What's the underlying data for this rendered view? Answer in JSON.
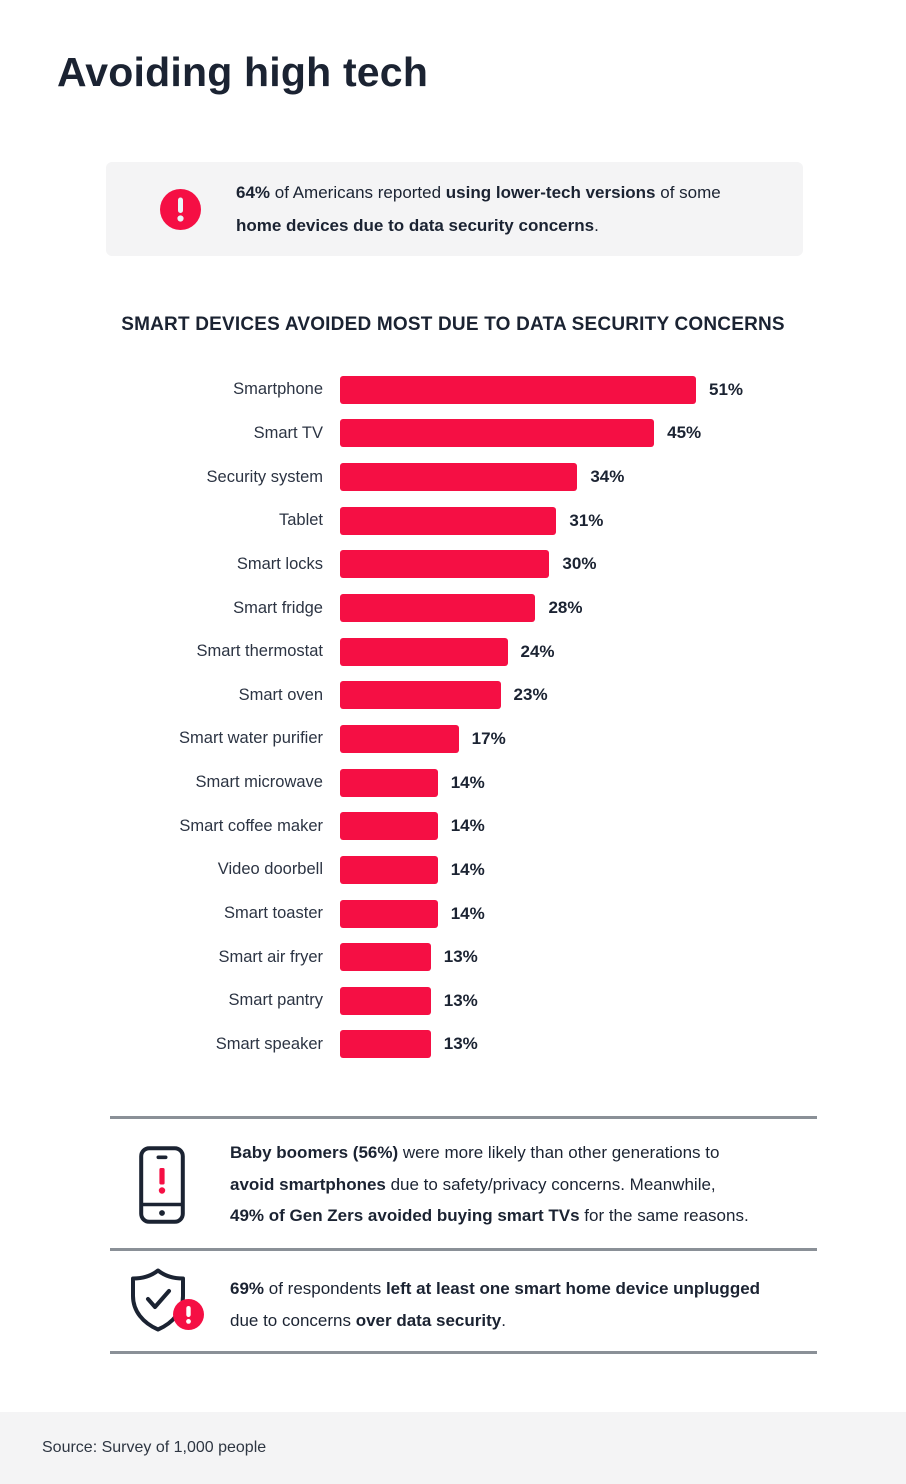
{
  "colors": {
    "accent": "#F50F44",
    "navy": "#1B2332",
    "panel": "#F4F4F5",
    "divider": "#8A9097"
  },
  "header": {
    "title": "Avoiding high tech"
  },
  "top_callout": {
    "icon": "alert-circle-icon",
    "lines": [
      [
        {
          "t": "64%",
          "b": true
        },
        {
          "t": " of Americans reported ",
          "b": false
        },
        {
          "t": "using lower-tech versions",
          "b": true
        },
        {
          "t": " of some",
          "b": false
        }
      ],
      [
        {
          "t": "home devices due to data security concerns",
          "b": true
        },
        {
          "t": ".",
          "b": false
        }
      ]
    ]
  },
  "chart_data": {
    "type": "bar",
    "orientation": "horizontal",
    "title": "SMART DEVICES AVOIDED MOST DUE TO DATA SECURITY CONCERNS",
    "categories": [
      "Smartphone",
      "Smart TV",
      "Security system",
      "Tablet",
      "Smart locks",
      "Smart fridge",
      "Smart thermostat",
      "Smart oven",
      "Smart water purifier",
      "Smart microwave",
      "Smart coffee maker",
      "Video doorbell",
      "Smart toaster",
      "Smart air fryer",
      "Smart pantry",
      "Smart speaker"
    ],
    "values": [
      51,
      45,
      34,
      31,
      30,
      28,
      24,
      23,
      17,
      14,
      14,
      14,
      14,
      13,
      13,
      13
    ],
    "value_suffix": "%",
    "bar_color": "#F50F44",
    "xlim": [
      0,
      51
    ],
    "grid": false,
    "data_labels": true,
    "legend": "none"
  },
  "insights": [
    {
      "icon": "smartphone-alert-icon",
      "lines": [
        [
          {
            "t": "Baby boomers (56%)",
            "b": true
          },
          {
            "t": " were more likely than other generations to",
            "b": false
          }
        ],
        [
          {
            "t": "avoid smartphones",
            "b": true
          },
          {
            "t": " due to safety/privacy concerns. Meanwhile,",
            "b": false
          }
        ],
        [
          {
            "t": "49% of Gen Zers avoided buying smart TVs",
            "b": true
          },
          {
            "t": " for the same reasons.",
            "b": false
          }
        ]
      ]
    },
    {
      "icon": "shield-check-alert-icon",
      "lines": [
        [
          {
            "t": "69%",
            "b": true
          },
          {
            "t": " of respondents ",
            "b": false
          },
          {
            "t": "left at least one smart home device unplugged",
            "b": true
          }
        ],
        [
          {
            "t": "due to concerns ",
            "b": false
          },
          {
            "t": "over data security",
            "b": true
          },
          {
            "t": ".",
            "b": false
          }
        ]
      ]
    }
  ],
  "footer": {
    "source_text": "Source: Survey of 1,000 people"
  }
}
